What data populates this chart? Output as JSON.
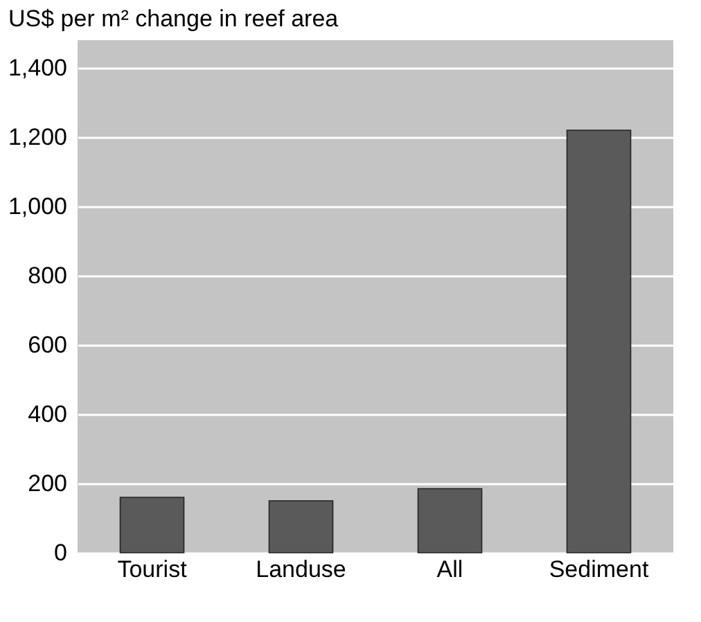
{
  "chart_data": {
    "type": "bar",
    "title": "US$ per m² change in reef area",
    "categories": [
      "Tourist",
      "Landuse",
      "All",
      "Sediment"
    ],
    "values": [
      160,
      150,
      185,
      1220
    ],
    "color": "#5a5a5a",
    "ylim": [
      0,
      1480
    ],
    "yticks": [
      0,
      200,
      400,
      600,
      800,
      {
        "value": 1000,
        "label": "1,000"
      },
      {
        "value": 1200,
        "label": "1,200"
      },
      {
        "value": 1400,
        "label": "1,400"
      }
    ],
    "grid": "y"
  }
}
